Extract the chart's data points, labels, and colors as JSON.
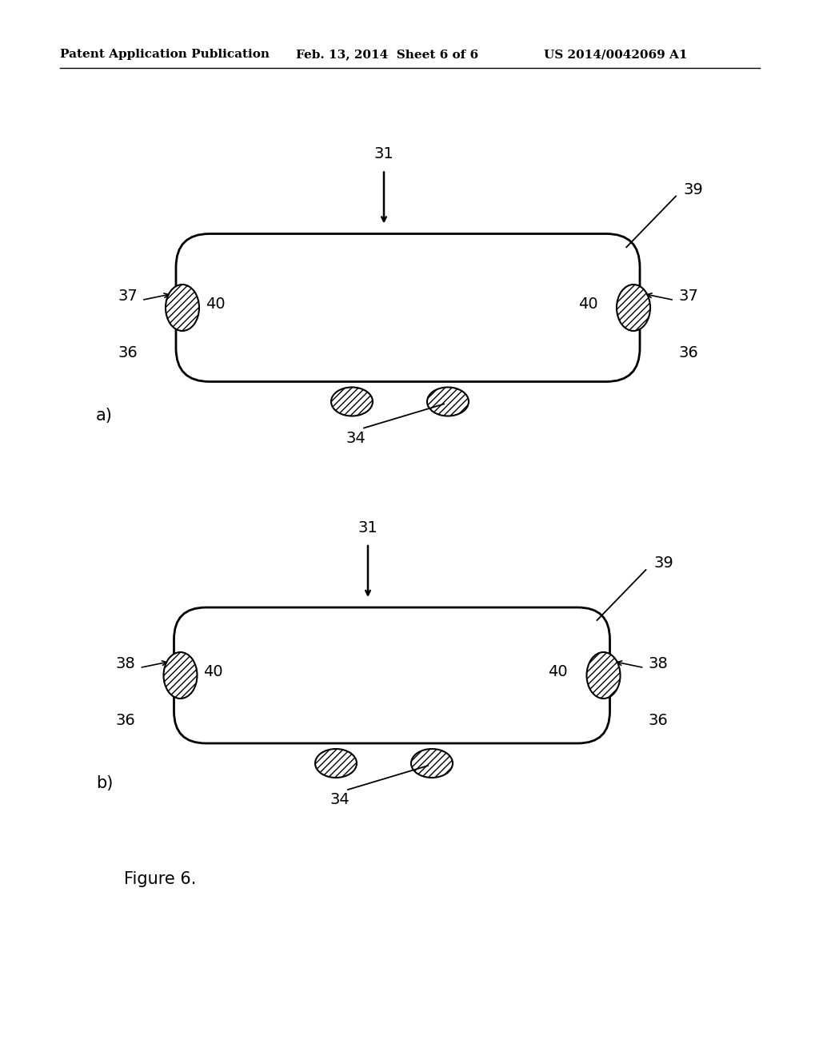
{
  "bg_color": "#ffffff",
  "text_color": "#000000",
  "header_left": "Patent Application Publication",
  "header_mid": "Feb. 13, 2014  Sheet 6 of 6",
  "header_right": "US 2014/0042069 A1",
  "figure_label": "Figure 6.",
  "line_color": "#000000"
}
